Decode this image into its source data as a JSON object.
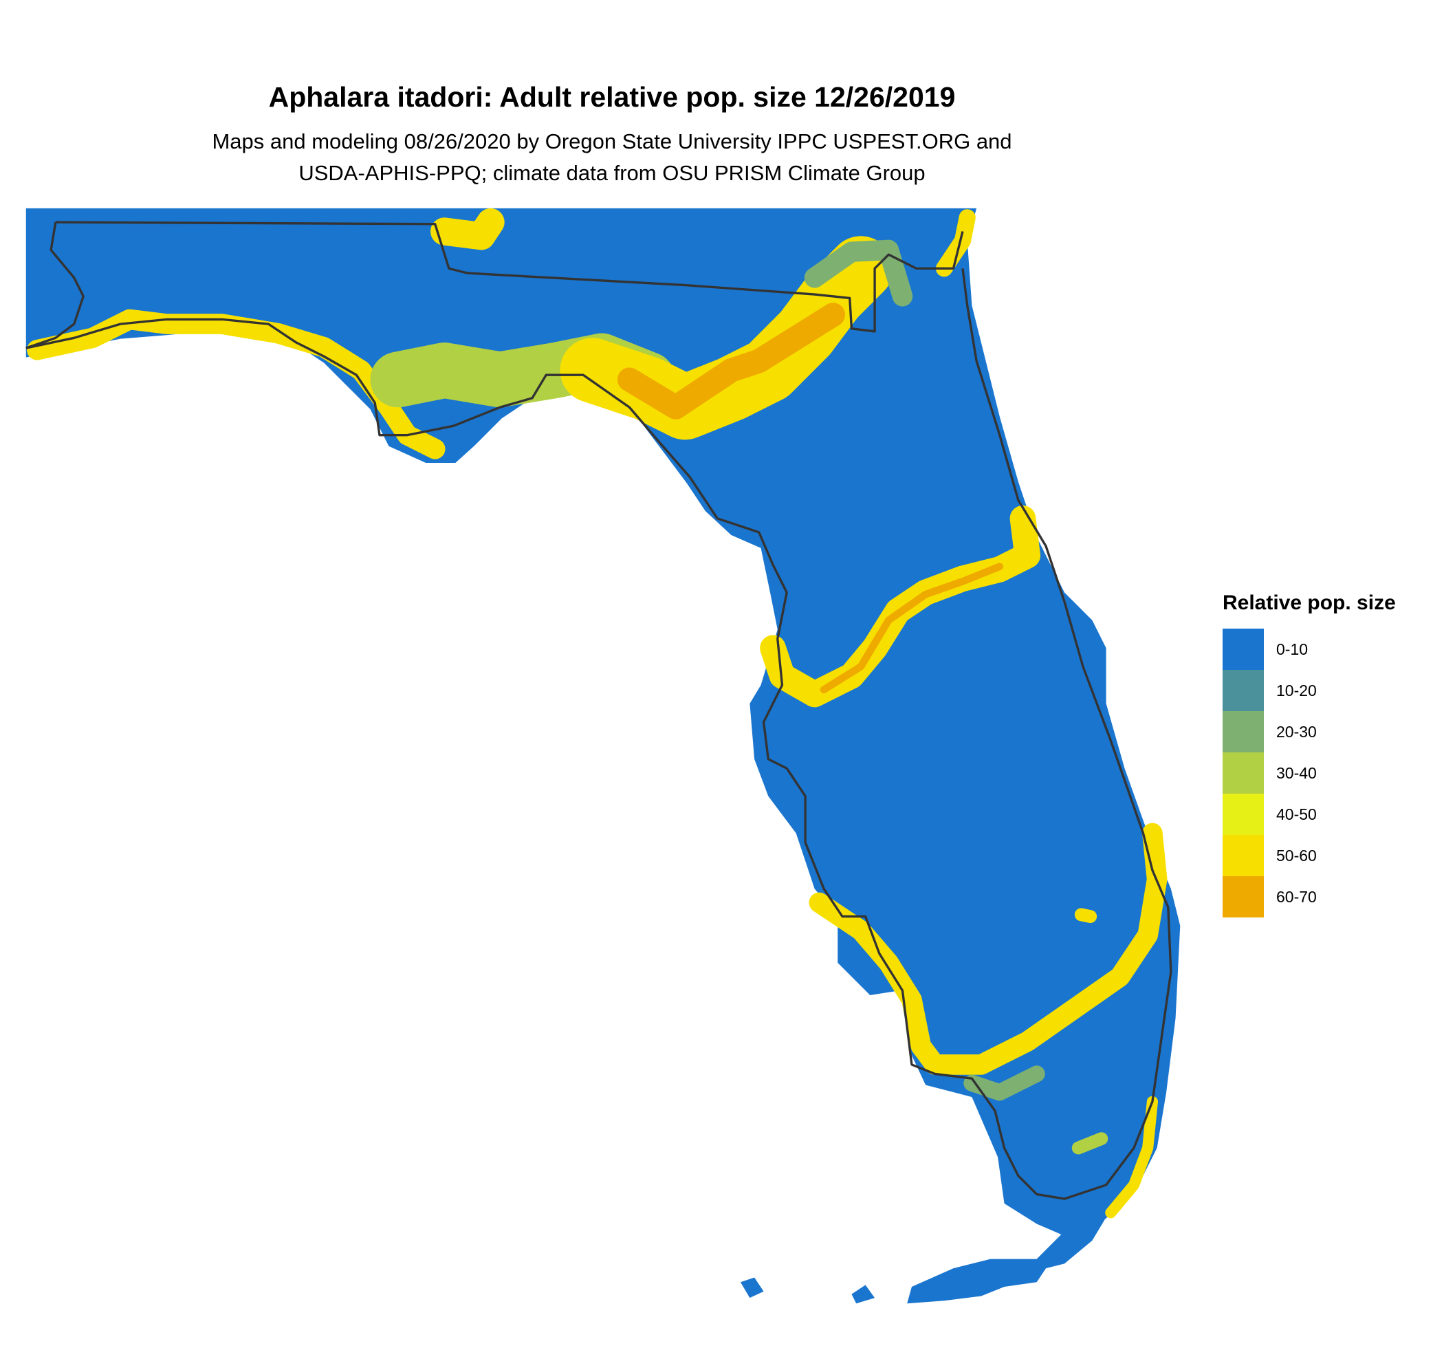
{
  "title": "Aphalara itadori: Adult relative pop. size 12/26/2019",
  "subtitle_lines": [
    "Maps and modeling 08/26/2020 by Oregon State University IPPC USPEST.ORG and",
    "USDA-APHIS-PPQ; climate data from OSU PRISM Climate Group"
  ],
  "map": {
    "region": "Florida",
    "background_class_color": "#1a75cf",
    "outline_color": "#333333"
  },
  "legend": {
    "title": "Relative pop. size",
    "placement": "right",
    "items": [
      {
        "label": "0-10",
        "color": "#1a75cf"
      },
      {
        "label": "10-20",
        "color": "#4a919b"
      },
      {
        "label": "20-30",
        "color": "#7eb072"
      },
      {
        "label": "30-40",
        "color": "#b2d043"
      },
      {
        "label": "40-50",
        "color": "#e6ef16"
      },
      {
        "label": "50-60",
        "color": "#f7e000"
      },
      {
        "label": "60-70",
        "color": "#efaa00"
      }
    ]
  }
}
